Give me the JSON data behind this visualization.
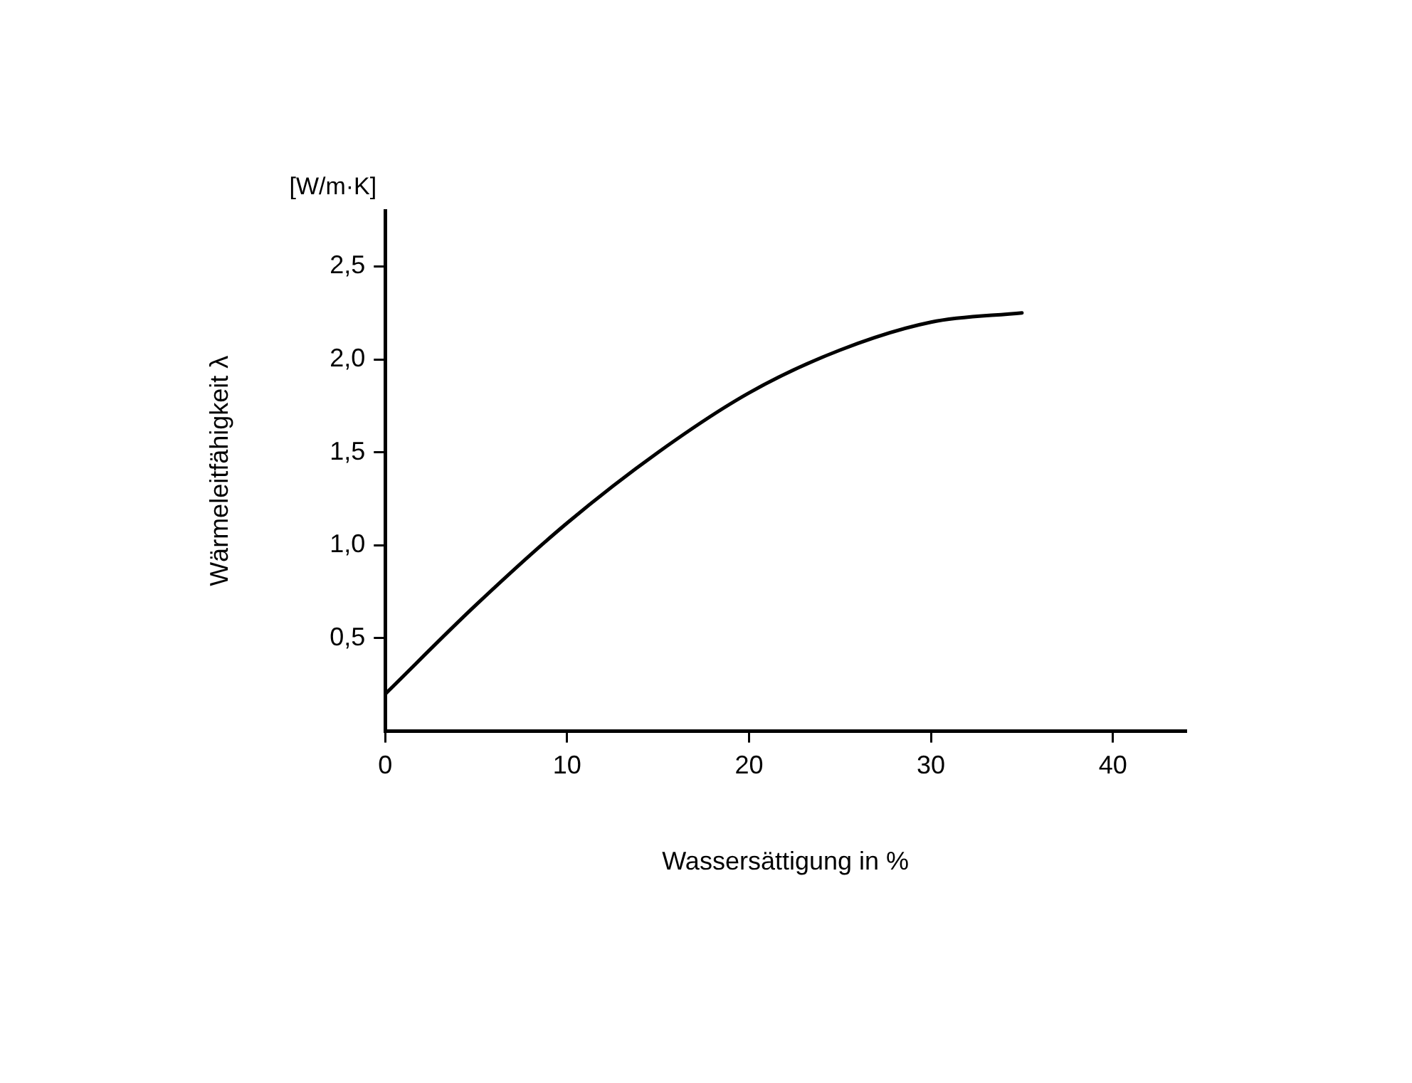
{
  "chart_data": {
    "type": "line",
    "xlabel": "Wassersättigung in %",
    "ylabel": "Wärmeleitfähigkeit λ",
    "annotations": [
      "[W/m·K]"
    ],
    "series": [
      {
        "color": "#000000",
        "x": [
          0,
          5,
          10,
          15,
          20,
          25,
          30,
          35
        ],
        "values": [
          0.2,
          0.68,
          1.12,
          1.5,
          1.82,
          2.05,
          2.2,
          2.25
        ]
      }
    ],
    "xlim": [
      0,
      44
    ],
    "xticks": [
      0,
      10,
      20,
      30,
      40
    ],
    "ylim": [
      0,
      2.8
    ],
    "yticks": [
      {
        "value": 0.5,
        "label": "0,5"
      },
      {
        "value": 1,
        "label": "1,0"
      },
      {
        "value": 1.5,
        "label": "1,5"
      },
      {
        "value": 2,
        "label": "2,0"
      },
      {
        "value": 2.5,
        "label": "2,5"
      }
    ],
    "grid": false,
    "legend": false,
    "marker": "none",
    "line_style": "solid"
  }
}
